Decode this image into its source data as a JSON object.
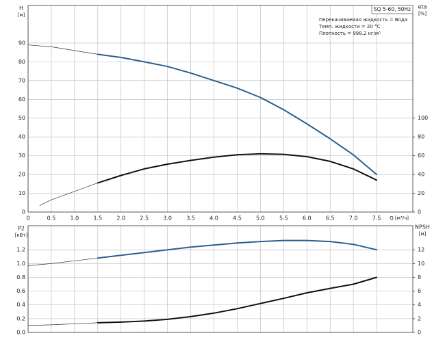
{
  "chart_data": [
    {
      "type": "line",
      "title": "SQ 5-60, 50Hz",
      "annotations": [
        "Перекачиваемая жидкость = Вода",
        "Темп. жидкости = 20 °C",
        "Плотность = 998.2 кг/м³"
      ],
      "y_label": "H",
      "y_unit": "[м]",
      "y2_label": "eta",
      "y2_unit": "[%]",
      "x_label": "Q [м³/ч]",
      "xlim": [
        0,
        8.28
      ],
      "xticks": [
        0,
        0.5,
        {
          "value": 1,
          "label": "1.0"
        },
        1.5,
        {
          "value": 2,
          "label": "2.0"
        },
        2.5,
        {
          "value": 3,
          "label": "3.0"
        },
        3.5,
        {
          "value": 4,
          "label": "4.0"
        },
        4.5,
        {
          "value": 5,
          "label": "5.0"
        },
        5.5,
        {
          "value": 6,
          "label": "6.0"
        },
        6.5,
        {
          "value": 7,
          "label": "7.0"
        },
        7.5
      ],
      "xtick_labels": true,
      "ylim": [
        0,
        110
      ],
      "yticks": [
        0,
        10,
        20,
        30,
        40,
        50,
        60,
        70,
        80,
        90
      ],
      "y2lim": [
        0,
        220
      ],
      "y2ticks": [
        0,
        20,
        40,
        60,
        80,
        100
      ],
      "grid": true,
      "series": [
        {
          "color": "#333333",
          "width": 0.7,
          "x": [
            0,
            0.5,
            1,
            1.5
          ],
          "values": [
            89,
            88,
            86,
            84
          ]
        },
        {
          "color": "#2b5f8e",
          "width": 2,
          "x": [
            1.5,
            2,
            2.5,
            3,
            3.5,
            4,
            4.5,
            5,
            5.5,
            6,
            6.5,
            7,
            7.5
          ],
          "values": [
            84,
            82.3,
            80,
            77.5,
            74,
            70,
            66,
            61,
            54.5,
            47,
            39,
            30.5,
            20
          ]
        },
        {
          "color": "#333333",
          "width": 0.7,
          "axis": "y2",
          "x": [
            0.25,
            0.5,
            1,
            1.5
          ],
          "values": [
            7,
            13,
            22,
            31
          ]
        },
        {
          "color": "#111111",
          "width": 2,
          "axis": "y2",
          "x": [
            1.5,
            2,
            2.5,
            3,
            3.5,
            4,
            4.5,
            5,
            5.5,
            6,
            6.5,
            7,
            7.5
          ],
          "values": [
            31,
            39,
            46,
            51,
            55,
            58.5,
            61,
            62,
            61.5,
            59,
            54,
            46,
            34
          ]
        }
      ]
    },
    {
      "type": "line",
      "y_label": "P2",
      "y_unit": "[кВт]",
      "y2_label": "NPSH",
      "y2_unit": "[м]",
      "xlim": [
        0,
        8.28
      ],
      "xticks": [
        0,
        0.5,
        1,
        1.5,
        2,
        2.5,
        3,
        3.5,
        4,
        4.5,
        5,
        5.5,
        6,
        6.5,
        7,
        7.5
      ],
      "xtick_labels": false,
      "ylim": [
        0,
        1.55
      ],
      "yticks": [
        {
          "value": 0,
          "label": "0.0"
        },
        0.2,
        0.4,
        0.6,
        0.8,
        {
          "value": 1,
          "label": "1.0"
        },
        1.2
      ],
      "y2lim": [
        0,
        15.5
      ],
      "y2ticks": [
        0,
        2,
        4,
        6,
        8,
        10,
        12
      ],
      "grid": true,
      "series": [
        {
          "color": "#333333",
          "width": 0.7,
          "x": [
            0,
            0.5,
            1,
            1.5
          ],
          "values": [
            0.97,
            1.0,
            1.04,
            1.08
          ]
        },
        {
          "color": "#2b5f8e",
          "width": 2,
          "x": [
            1.5,
            2,
            2.5,
            3,
            3.5,
            4,
            4.5,
            5,
            5.5,
            6,
            6.5,
            7,
            7.5
          ],
          "values": [
            1.08,
            1.12,
            1.16,
            1.2,
            1.24,
            1.27,
            1.3,
            1.32,
            1.335,
            1.335,
            1.32,
            1.28,
            1.2
          ]
        },
        {
          "color": "#333333",
          "width": 0.7,
          "axis": "y2",
          "x": [
            0,
            0.5,
            1,
            1.5
          ],
          "values": [
            1.0,
            1.1,
            1.25,
            1.4
          ]
        },
        {
          "color": "#111111",
          "width": 2,
          "axis": "y2",
          "x": [
            1.5,
            2,
            2.5,
            3,
            3.5,
            4,
            4.5,
            5,
            5.5,
            6,
            6.5,
            7,
            7.5
          ],
          "values": [
            1.4,
            1.5,
            1.65,
            1.9,
            2.3,
            2.8,
            3.45,
            4.2,
            4.95,
            5.75,
            6.4,
            7.0,
            8.0
          ]
        }
      ]
    }
  ]
}
